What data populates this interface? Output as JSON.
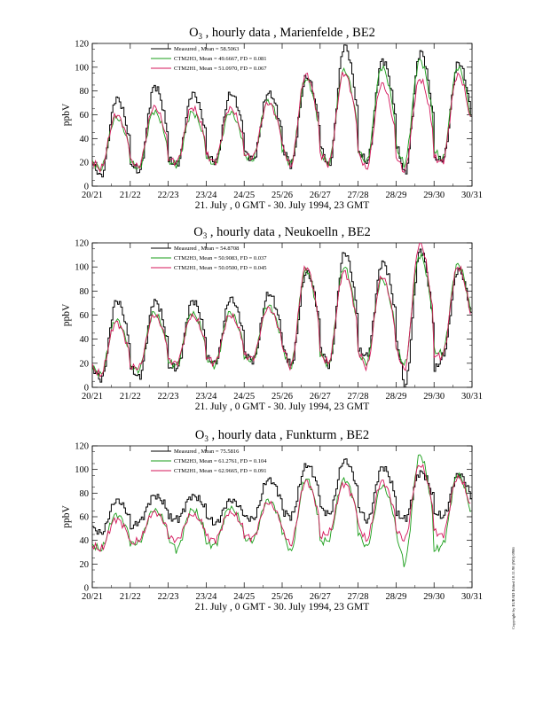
{
  "copyright": "Copyright by EURAD Edited 10.11.98 (NO) 0986",
  "chart_data": [
    {
      "type": "line",
      "title": "O",
      "title_sub": "3",
      "title_rest": " , hourly data , Marienfelde , BE2",
      "xlabel": "21. July , 0 GMT - 30. July 1994, 23 GMT",
      "ylabel": "ppbV",
      "xlim": [
        0,
        240
      ],
      "ylim": [
        0,
        120
      ],
      "yticks": [
        0,
        20,
        40,
        60,
        80,
        100,
        120
      ],
      "xtick_labels": [
        "20/21",
        "21/22",
        "22/23",
        "23/24",
        "24/25",
        "25/26",
        "26/27",
        "27/28",
        "28/29",
        "29/30",
        "30/31"
      ],
      "legend_placement": "top-left",
      "series": [
        {
          "name": "Measured",
          "legend_label": "Measured       , Mean = 58.5063",
          "color": "#000000",
          "step": true,
          "daily_min": [
            8,
            12,
            18,
            20,
            22,
            18,
            16,
            20,
            10,
            22
          ],
          "daily_max": [
            74,
            84,
            78,
            78,
            79,
            92,
            118,
            106,
            113,
            104
          ]
        },
        {
          "name": "CTM2H3",
          "legend_label": "CTM2H3, Mean = 49.6667, FD = 0.081",
          "color": "#1a9e1a",
          "step": false,
          "daily_min": [
            14,
            14,
            18,
            18,
            22,
            18,
            18,
            20,
            18,
            22
          ],
          "daily_max": [
            58,
            63,
            62,
            62,
            72,
            90,
            98,
            100,
            106,
            100
          ]
        },
        {
          "name": "CTM2H1",
          "legend_label": "CTM2H1, Mean = 51.0970, FD = 0.067",
          "color": "#d4145a",
          "step": false,
          "daily_min": [
            14,
            16,
            20,
            20,
            24,
            16,
            18,
            14,
            12,
            20
          ],
          "daily_max": [
            60,
            67,
            66,
            66,
            70,
            94,
            95,
            86,
            90,
            94
          ]
        }
      ]
    },
    {
      "type": "line",
      "title": "O",
      "title_sub": "3",
      "title_rest": " , hourly data , Neukoelln , BE2",
      "xlabel": "21. July , 0 GMT - 30. July 1994, 23 GMT",
      "ylabel": "ppbV",
      "xlim": [
        0,
        240
      ],
      "ylim": [
        0,
        120
      ],
      "yticks": [
        0,
        20,
        40,
        60,
        80,
        100,
        120
      ],
      "xtick_labels": [
        "20/21",
        "21/22",
        "22/23",
        "23/24",
        "24/25",
        "25/26",
        "26/27",
        "27/28",
        "28/29",
        "29/30",
        "30/31"
      ],
      "legend_placement": "top-left",
      "series": [
        {
          "name": "Measured",
          "legend_label": "Measured       , Mean = 54.8708",
          "color": "#000000",
          "step": true,
          "daily_min": [
            6,
            8,
            16,
            20,
            22,
            18,
            18,
            26,
            0,
            26
          ],
          "daily_max": [
            72,
            72,
            72,
            74,
            78,
            96,
            112,
            104,
            114,
            98
          ]
        },
        {
          "name": "CTM2H3",
          "legend_label": "CTM2H3, Mean = 50.9083, FD = 0.037",
          "color": "#1a9e1a",
          "step": false,
          "daily_min": [
            10,
            14,
            18,
            18,
            22,
            16,
            18,
            20,
            18,
            28
          ],
          "daily_max": [
            56,
            62,
            62,
            62,
            68,
            98,
            100,
            90,
            110,
            102
          ]
        },
        {
          "name": "CTM2H1",
          "legend_label": "CTM2H1, Mean = 50.0500, FD = 0.045",
          "color": "#d4145a",
          "step": false,
          "daily_min": [
            10,
            16,
            20,
            20,
            24,
            16,
            20,
            16,
            14,
            26
          ],
          "daily_max": [
            54,
            60,
            60,
            60,
            66,
            100,
            96,
            92,
            120,
            100
          ]
        }
      ]
    },
    {
      "type": "line",
      "title": "O",
      "title_sub": "3",
      "title_rest": " , hourly data , Funkturm , BE2",
      "xlabel": "21. July , 0 GMT - 30. July 1994, 23 GMT",
      "ylabel": "ppbV",
      "xlim": [
        0,
        240
      ],
      "ylim": [
        0,
        120
      ],
      "yticks": [
        0,
        20,
        40,
        60,
        80,
        100,
        120
      ],
      "xtick_labels": [
        "20/21",
        "21/22",
        "22/23",
        "23/24",
        "24/25",
        "25/26",
        "26/27",
        "27/28",
        "28/29",
        "29/30",
        "30/31"
      ],
      "legend_placement": "top-left",
      "series": [
        {
          "name": "Measured",
          "legend_label": "Measured       , Mean = 75.5816",
          "color": "#000000",
          "step": true,
          "daily_min": [
            46,
            56,
            58,
            54,
            58,
            60,
            62,
            56,
            58,
            60
          ],
          "daily_max": [
            74,
            78,
            78,
            74,
            92,
            104,
            108,
            102,
            98,
            96
          ]
        },
        {
          "name": "CTM2H3",
          "legend_label": "CTM2H3, Mean = 61.2761, FD = 0.104",
          "color": "#1a9e1a",
          "step": false,
          "daily_min": [
            32,
            38,
            32,
            36,
            40,
            30,
            40,
            34,
            20,
            36
          ],
          "daily_max": [
            62,
            66,
            66,
            68,
            74,
            92,
            92,
            86,
            112,
            96
          ]
        },
        {
          "name": "CTM2H1",
          "legend_label": "CTM2H1, Mean = 62.9665, FD = 0.091",
          "color": "#d4145a",
          "step": false,
          "daily_min": [
            32,
            40,
            40,
            40,
            42,
            36,
            46,
            40,
            40,
            44
          ],
          "daily_max": [
            58,
            64,
            62,
            64,
            72,
            90,
            88,
            90,
            104,
            94
          ]
        }
      ]
    }
  ]
}
